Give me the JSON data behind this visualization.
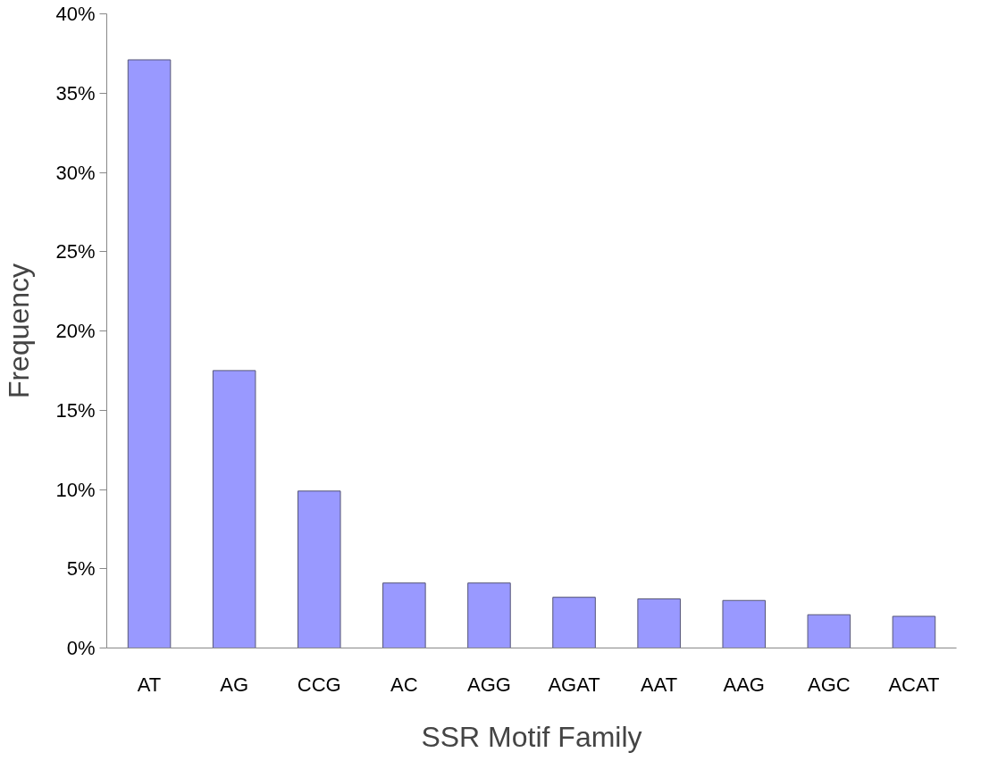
{
  "chart_data": {
    "type": "bar",
    "xlabel": "SSR Motif Family",
    "ylabel": "Frequency",
    "categories": [
      "AT",
      "AG",
      "CCG",
      "AC",
      "AGG",
      "AGAT",
      "AAT",
      "AAG",
      "AGC",
      "ACAT"
    ],
    "values": [
      37.1,
      17.5,
      9.9,
      4.1,
      4.1,
      3.2,
      3.1,
      3.0,
      2.1,
      2.0
    ],
    "color": "#9999ff",
    "ylim": [
      0,
      40
    ],
    "yticks": [
      {
        "value": 0,
        "label": "0%"
      },
      {
        "value": 5,
        "label": "5%"
      },
      {
        "value": 10,
        "label": "10%"
      },
      {
        "value": 15,
        "label": "15%"
      },
      {
        "value": 20,
        "label": "20%"
      },
      {
        "value": 25,
        "label": "25%"
      },
      {
        "value": 30,
        "label": "30%"
      },
      {
        "value": 35,
        "label": "35%"
      },
      {
        "value": 40,
        "label": "40%"
      }
    ],
    "grid": false
  }
}
